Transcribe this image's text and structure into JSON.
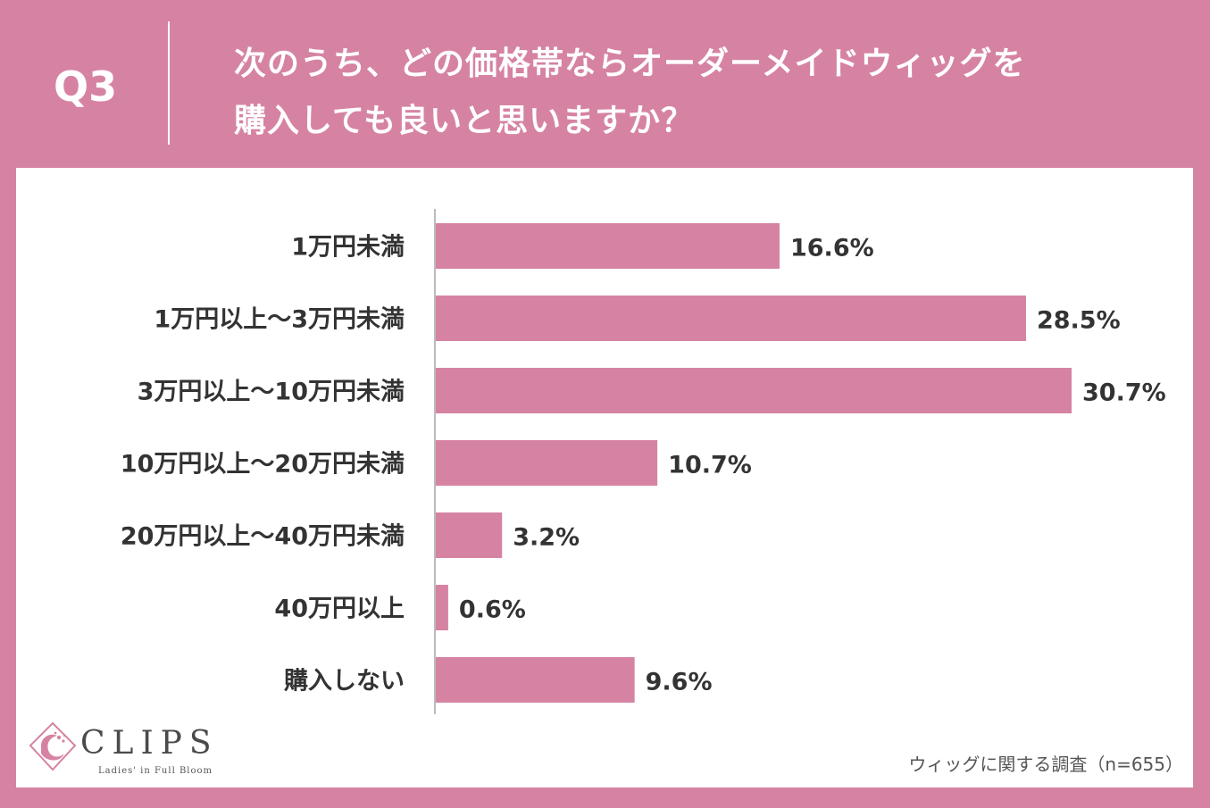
{
  "header": {
    "question_number": "Q3",
    "question_line1": "次のうち、どの価格帯ならオーダーメイドウィッグを",
    "question_line2": "購入しても良いと思いますか？"
  },
  "colors": {
    "background": "#d683a3",
    "bar": "#d683a3",
    "text": "#333333",
    "axis": "#bbbbbb"
  },
  "chart_data": {
    "type": "bar",
    "orientation": "horizontal",
    "categories": [
      "1万円未満",
      "1万円以上～3万円未満",
      "3万円以上～10万円未満",
      "10万円以上～20万円未満",
      "20万円以上～40万円未満",
      "40万円以上",
      "購入しない"
    ],
    "values": [
      16.6,
      28.5,
      30.7,
      10.7,
      3.2,
      0.6,
      9.6
    ],
    "data_labels": [
      "16.6%",
      "28.5%",
      "30.7%",
      "10.7%",
      "3.2%",
      "0.6%",
      "9.6%"
    ],
    "unit": "%",
    "xlim": [
      0,
      30.7
    ],
    "title": "",
    "xlabel": "",
    "ylabel": "",
    "grid": false
  },
  "logo": {
    "name": "CLIPS",
    "tagline": "Ladies' in Full Bloom"
  },
  "source": "ウィッグに関する調査（n=655）"
}
